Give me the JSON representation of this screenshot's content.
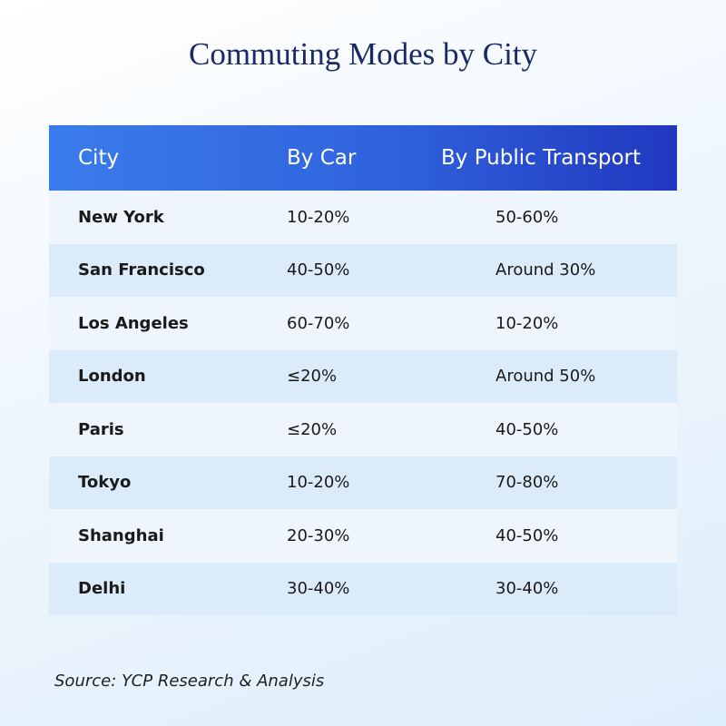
{
  "title": "Commuting Modes by City",
  "table": {
    "header": [
      "City",
      "By Car",
      "By Public Transport"
    ],
    "rows": [
      [
        "New York",
        "10-20%",
        "50-60%"
      ],
      [
        "San Francisco",
        "40-50%",
        "Around 30%"
      ],
      [
        "Los Angeles",
        "60-70%",
        "10-20%"
      ],
      [
        "London",
        "≤20%",
        "Around 50%"
      ],
      [
        "Paris",
        "≤20%",
        "40-50%"
      ],
      [
        "Tokyo",
        "10-20%",
        "70-80%"
      ],
      [
        "Shanghai",
        "20-30%",
        "40-50%"
      ],
      [
        "Delhi",
        "30-40%",
        "30-40%"
      ]
    ]
  },
  "source": "Source: YCP Research & Analysis"
}
